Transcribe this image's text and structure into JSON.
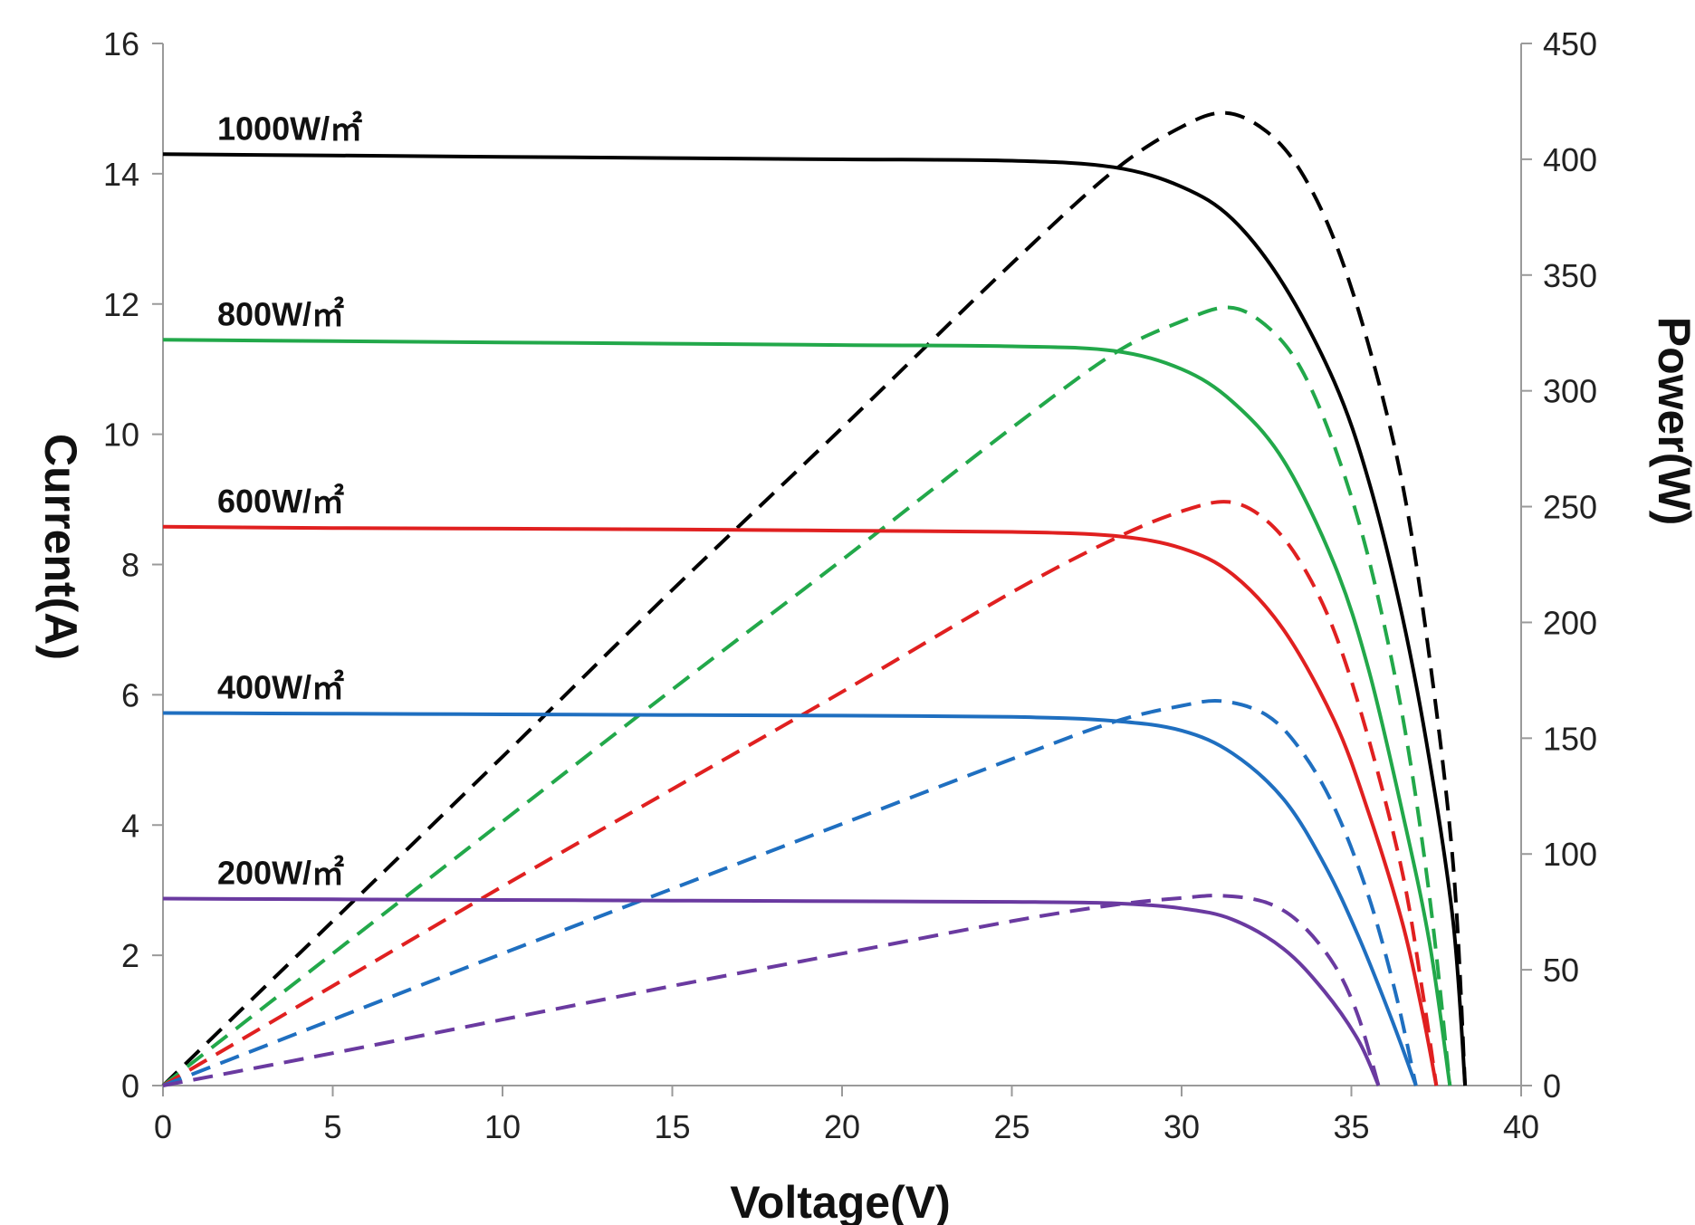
{
  "chart_data": {
    "type": "line",
    "xlabel": "Voltage(V)",
    "ylabel": "Current(A)",
    "y2label": "Power(W)",
    "xlim": [
      0,
      40
    ],
    "ylim": [
      0,
      16
    ],
    "y2lim": [
      0,
      450
    ],
    "x_ticks": [
      0,
      5,
      10,
      15,
      20,
      25,
      30,
      35,
      40
    ],
    "y_ticks": [
      0,
      2,
      4,
      6,
      8,
      10,
      12,
      14,
      16
    ],
    "y2_ticks": [
      0,
      50,
      100,
      150,
      200,
      250,
      300,
      350,
      400,
      450
    ],
    "grid": false,
    "legend": "none",
    "series": [
      {
        "label": "1000W/㎡",
        "color": "#000000",
        "current": {
          "x": [
            0,
            5,
            10,
            15,
            20,
            25,
            28,
            30,
            31.5,
            33,
            34.5,
            35.5,
            36.5,
            37.3,
            38,
            38.35
          ],
          "y": [
            14.3,
            14.28,
            14.26,
            14.24,
            14.22,
            14.2,
            14.1,
            13.8,
            13.3,
            12.3,
            10.8,
            9.3,
            7.2,
            5.0,
            2.5,
            0
          ]
        },
        "power": {
          "x": [
            0,
            5,
            10,
            15,
            20,
            25,
            28,
            30,
            31.3,
            32.5,
            33.5,
            34.5,
            35.5,
            36.5,
            37.3,
            38,
            38.35
          ],
          "y": [
            0,
            71,
            142,
            214,
            284,
            355,
            395,
            414,
            420,
            412,
            395,
            365,
            320,
            260,
            185,
            95,
            0
          ]
        }
      },
      {
        "label": "800W/㎡",
        "color": "#22a84a",
        "current": {
          "x": [
            0,
            5,
            10,
            15,
            20,
            25,
            28,
            30,
            31.5,
            33,
            34.5,
            35.5,
            36.5,
            37.3,
            37.9
          ],
          "y": [
            11.45,
            11.43,
            11.41,
            11.39,
            11.37,
            11.35,
            11.28,
            11.0,
            10.5,
            9.6,
            8.0,
            6.4,
            4.2,
            2.2,
            0
          ]
        },
        "power": {
          "x": [
            0,
            5,
            10,
            15,
            20,
            25,
            28,
            30,
            31.4,
            32.5,
            33.5,
            34.5,
            35.5,
            36.5,
            37.3,
            37.9
          ],
          "y": [
            0,
            57,
            114,
            171,
            227,
            284,
            316,
            330,
            336,
            328,
            310,
            276,
            228,
            160,
            82,
            0
          ]
        }
      },
      {
        "label": "600W/㎡",
        "color": "#e02020",
        "current": {
          "x": [
            0,
            5,
            10,
            15,
            20,
            25,
            28,
            30,
            31.5,
            33,
            34.5,
            35.5,
            36.5,
            37.1,
            37.5
          ],
          "y": [
            8.58,
            8.56,
            8.55,
            8.54,
            8.52,
            8.5,
            8.44,
            8.25,
            7.85,
            7.0,
            5.6,
            4.2,
            2.5,
            1.1,
            0
          ]
        },
        "power": {
          "x": [
            0,
            5,
            10,
            15,
            20,
            25,
            28,
            30,
            31.4,
            32.5,
            33.5,
            34.5,
            35.5,
            36.5,
            37.1,
            37.5
          ],
          "y": [
            0,
            43,
            86,
            128,
            170,
            213,
            236,
            248,
            252,
            244,
            226,
            196,
            150,
            92,
            40,
            0
          ]
        }
      },
      {
        "label": "400W/㎡",
        "color": "#1f6fc0",
        "current": {
          "x": [
            0,
            5,
            10,
            15,
            20,
            25,
            28,
            30,
            31.5,
            33,
            34.2,
            35.2,
            36.2,
            36.9
          ],
          "y": [
            5.72,
            5.71,
            5.7,
            5.69,
            5.68,
            5.66,
            5.6,
            5.45,
            5.1,
            4.4,
            3.4,
            2.3,
            1.0,
            0
          ]
        },
        "power": {
          "x": [
            0,
            5,
            10,
            15,
            20,
            25,
            28,
            30,
            31.2,
            32.5,
            33.5,
            34.5,
            35.5,
            36.3,
            36.9
          ],
          "y": [
            0,
            28.5,
            57,
            85,
            113,
            141,
            157,
            164,
            166,
            160,
            145,
            120,
            82,
            40,
            0
          ]
        }
      },
      {
        "label": "200W/㎡",
        "color": "#6a3aa0",
        "current": {
          "x": [
            0,
            5,
            10,
            15,
            20,
            25,
            28,
            30,
            31.5,
            33,
            34.2,
            35.2,
            35.8
          ],
          "y": [
            2.87,
            2.86,
            2.85,
            2.84,
            2.83,
            2.82,
            2.8,
            2.72,
            2.55,
            2.1,
            1.45,
            0.7,
            0
          ]
        },
        "power": {
          "x": [
            0,
            5,
            10,
            15,
            20,
            25,
            28,
            30,
            31.2,
            32.5,
            33.5,
            34.5,
            35.2,
            35.8
          ],
          "y": [
            0,
            14,
            28.5,
            43,
            57,
            71,
            78,
            81,
            82,
            79,
            70,
            52,
            30,
            0
          ]
        }
      }
    ]
  }
}
